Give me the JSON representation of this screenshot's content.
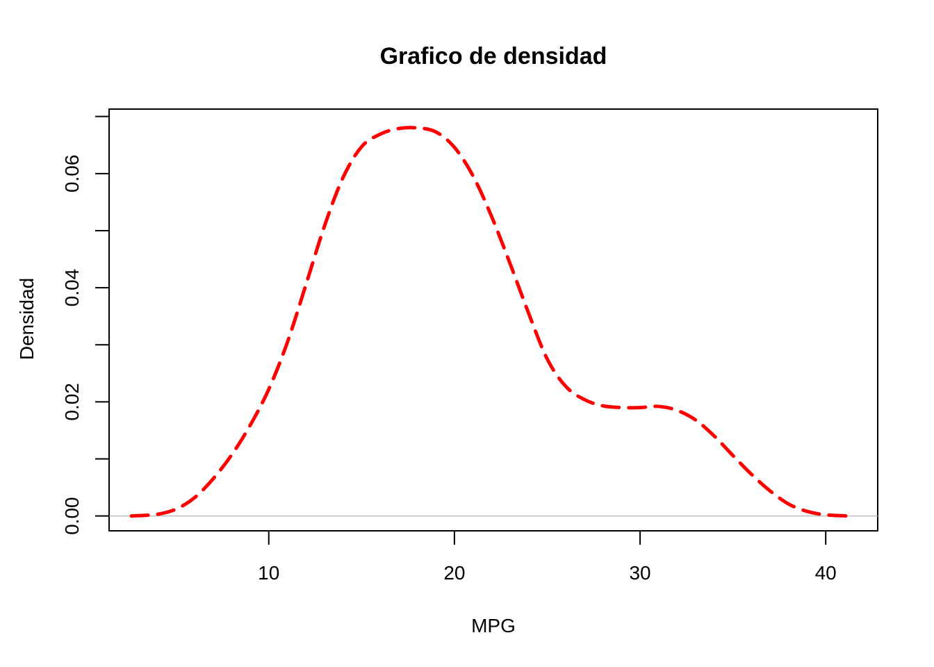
{
  "chart_data": {
    "type": "line",
    "title": "Grafico de densidad",
    "xlabel": "MPG",
    "ylabel": "Densidad",
    "xlim": [
      1.4,
      42.8
    ],
    "ylim": [
      -0.0026,
      0.0713
    ],
    "xticks": [
      {
        "value": 10,
        "label": "10"
      },
      {
        "value": 20,
        "label": "20"
      },
      {
        "value": 30,
        "label": "30"
      },
      {
        "value": 40,
        "label": "40"
      }
    ],
    "yticks": [
      {
        "value": 0.0,
        "label": "0.00"
      },
      {
        "value": 0.01,
        "label": ""
      },
      {
        "value": 0.02,
        "label": "0.02"
      },
      {
        "value": 0.03,
        "label": ""
      },
      {
        "value": 0.04,
        "label": "0.04"
      },
      {
        "value": 0.05,
        "label": ""
      },
      {
        "value": 0.06,
        "label": "0.06"
      },
      {
        "value": 0.07,
        "label": ""
      }
    ],
    "zero_line": true,
    "grid": false,
    "series": [
      {
        "color": "#ff0000",
        "line_style": "dashed",
        "x": [
          2.6,
          4.0,
          5.0,
          6.0,
          7.0,
          8.0,
          9.0,
          10.0,
          11.0,
          12.0,
          13.0,
          14.0,
          15.0,
          16.0,
          17.0,
          18.0,
          19.0,
          20.0,
          21.0,
          22.0,
          23.0,
          24.0,
          25.0,
          26.0,
          27.0,
          28.0,
          29.0,
          30.0,
          31.0,
          32.0,
          33.0,
          34.0,
          35.0,
          36.0,
          37.0,
          38.0,
          39.0,
          40.0,
          41.2
        ],
        "y": [
          0.0,
          0.0003,
          0.0012,
          0.0032,
          0.0065,
          0.0107,
          0.0159,
          0.0222,
          0.0304,
          0.0405,
          0.0508,
          0.0593,
          0.0647,
          0.0669,
          0.0679,
          0.068,
          0.0673,
          0.0646,
          0.0596,
          0.0525,
          0.0442,
          0.0355,
          0.0275,
          0.0227,
          0.0204,
          0.0193,
          0.019,
          0.019,
          0.0192,
          0.0185,
          0.0168,
          0.014,
          0.0106,
          0.0073,
          0.0044,
          0.0021,
          0.0008,
          0.0002,
          0.0
        ]
      }
    ]
  }
}
